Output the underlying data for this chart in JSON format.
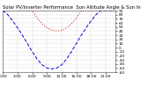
{
  "title": "Solar PV/Inverter Performance  Sun Altitude Angle & Sun Incidence Angle on PV Panels",
  "background_color": "#ffffff",
  "grid_color": "#bbbbbb",
  "x_hours": [
    0,
    1,
    2,
    3,
    4,
    5,
    6,
    7,
    8,
    9,
    10,
    11,
    12,
    13,
    14,
    15,
    16,
    17,
    18,
    19,
    20,
    21,
    22,
    23
  ],
  "sun_altitude": [
    90,
    80,
    65,
    48,
    30,
    10,
    -10,
    -28,
    -42,
    -50,
    -52,
    -50,
    -42,
    -28,
    -10,
    10,
    30,
    48,
    65,
    80,
    90,
    90,
    90,
    90
  ],
  "sun_incidence": [
    90,
    90,
    90,
    90,
    90,
    90,
    90,
    72,
    58,
    48,
    42,
    40,
    42,
    48,
    58,
    72,
    90,
    90,
    90,
    90,
    90,
    90,
    90,
    90
  ],
  "altitude_color": "#0000dd",
  "incidence_color": "#dd0000",
  "ylim_min": -60,
  "ylim_max": 90,
  "xlim_min": 0,
  "xlim_max": 23,
  "ytick_values": [
    90,
    80,
    70,
    60,
    50,
    40,
    30,
    20,
    10,
    0,
    -10,
    -20,
    -30,
    -40,
    -50,
    -60
  ],
  "xtick_positions": [
    0,
    3,
    6,
    9,
    12,
    15,
    18,
    21
  ],
  "xtick_labels": [
    "0:00",
    "3:00",
    "6:00",
    "9:00",
    "12:00",
    "15:00",
    "18:00",
    "21:00"
  ],
  "title_fontsize": 3.8,
  "tick_fontsize": 3.2,
  "linewidth": 0.7,
  "alt_dashes": [
    4,
    2
  ],
  "inc_dots": [
    1,
    2
  ]
}
